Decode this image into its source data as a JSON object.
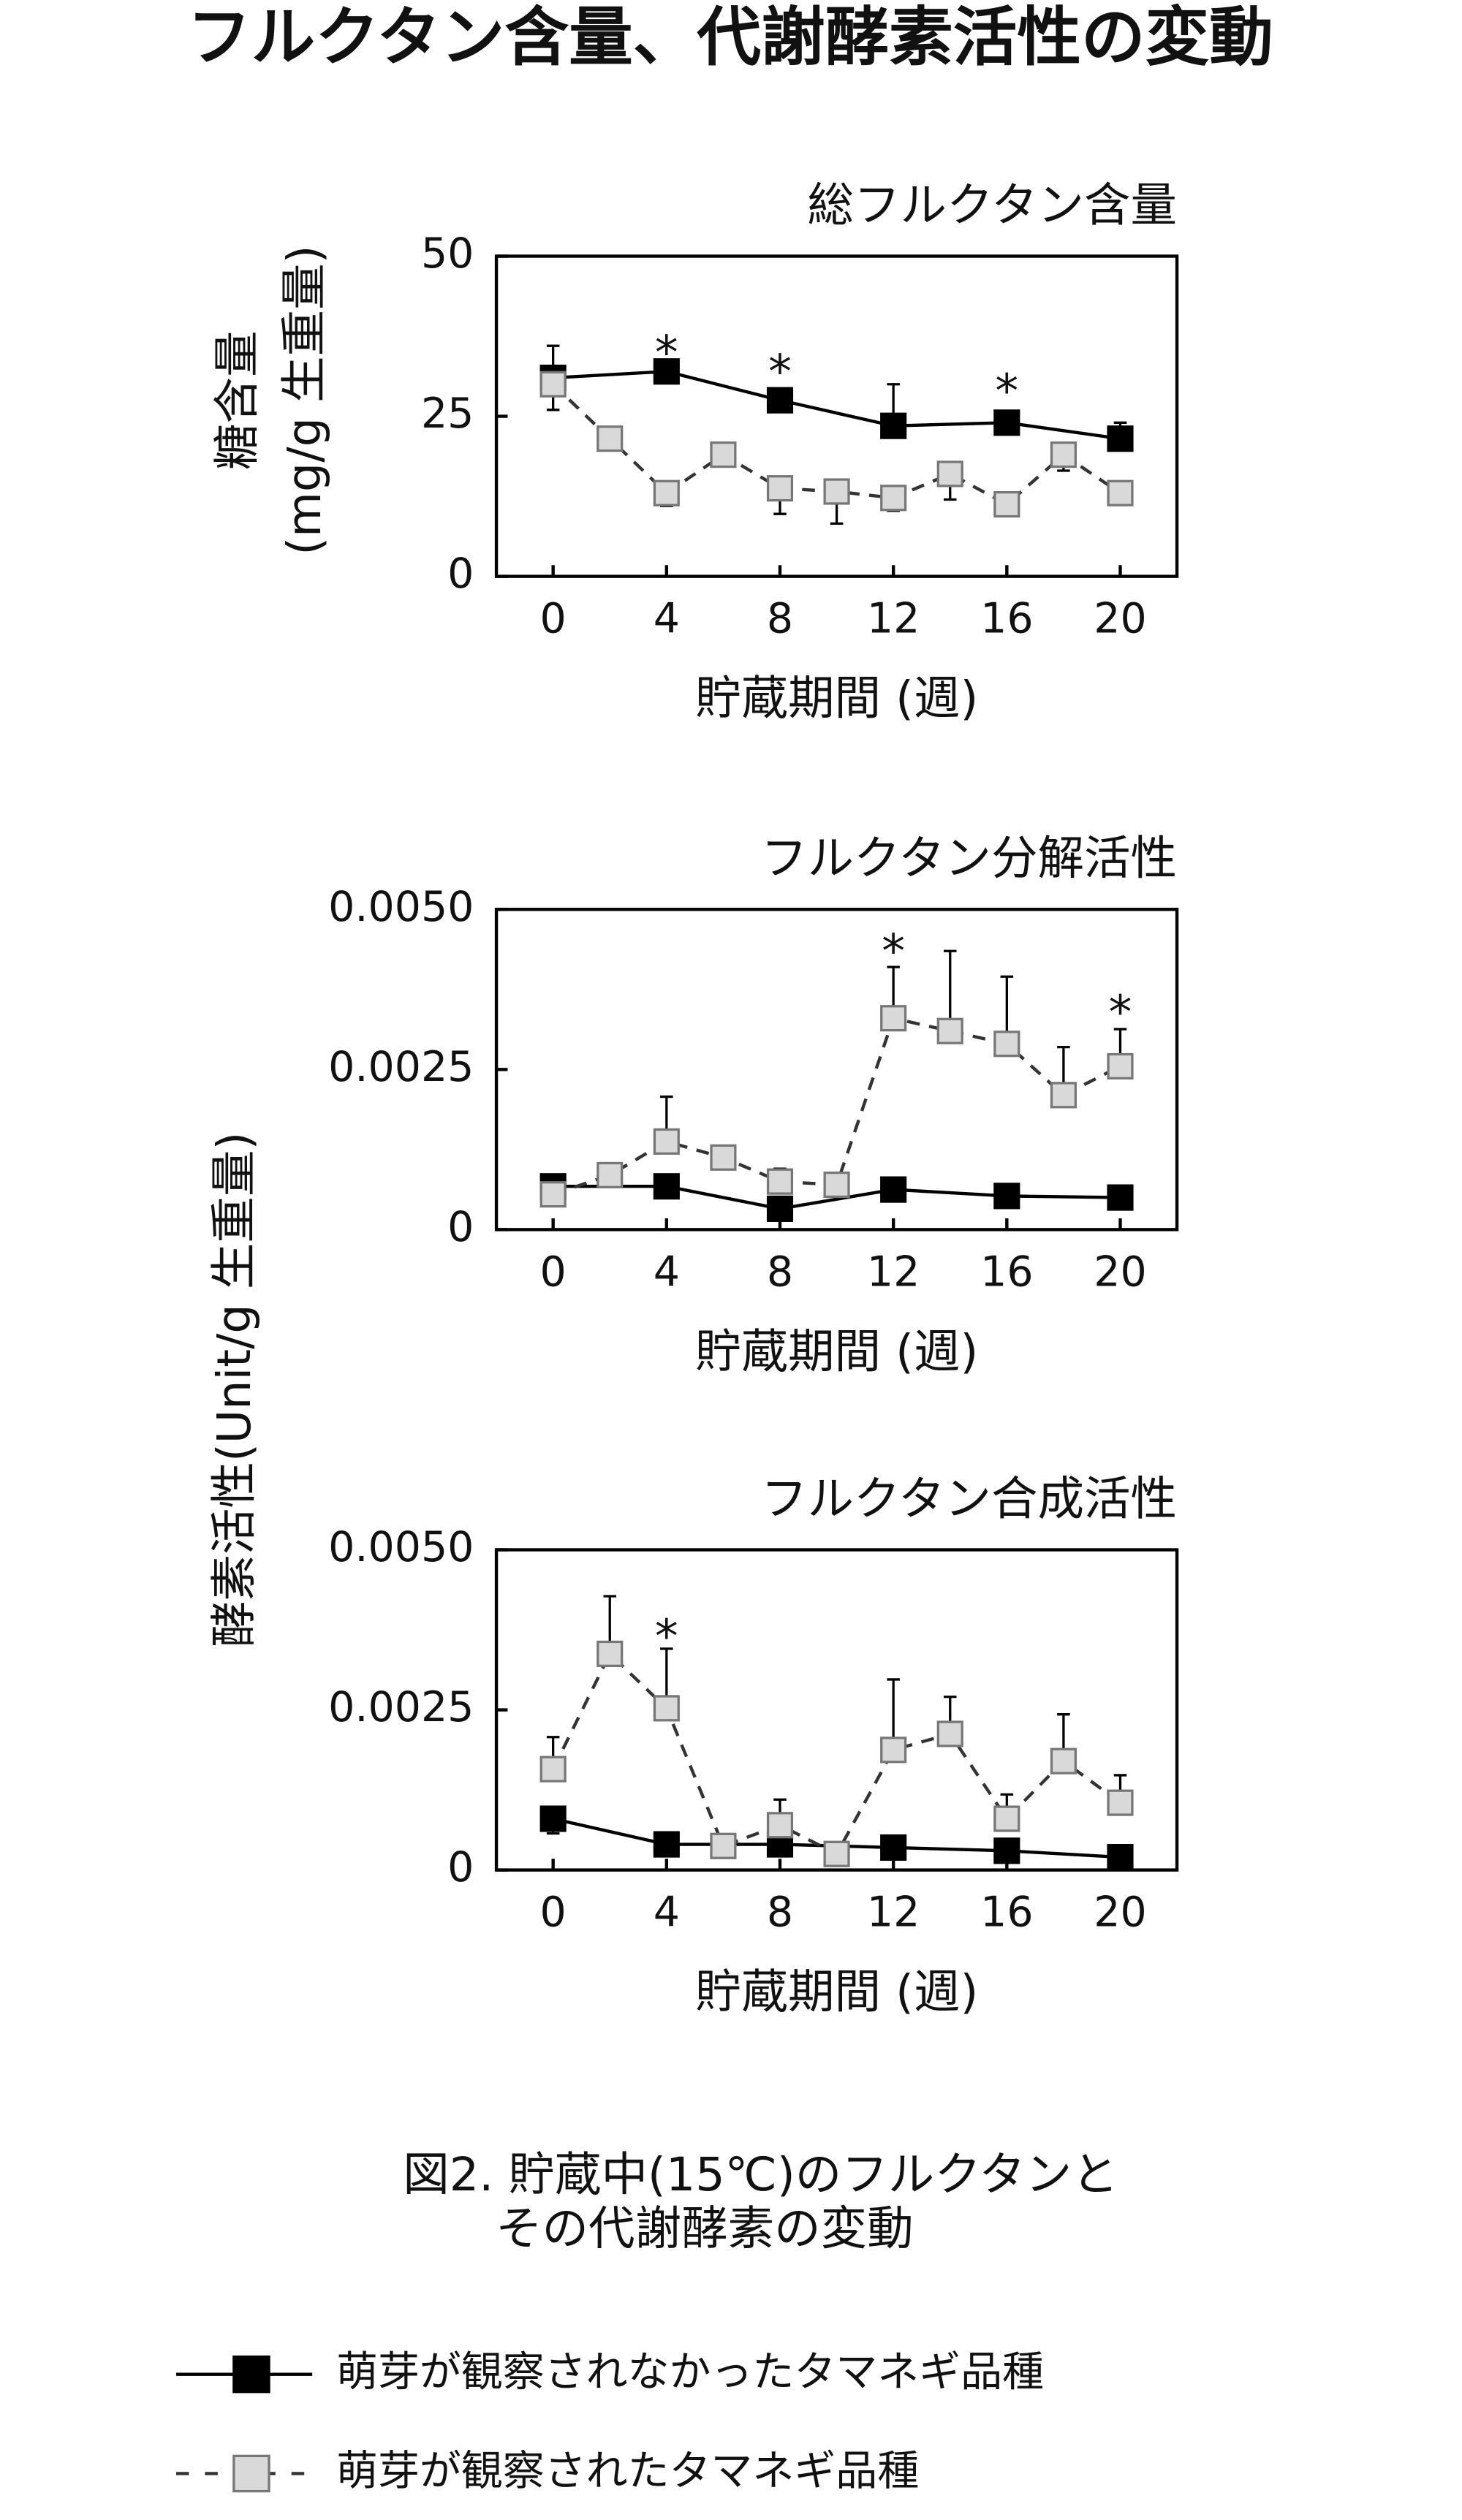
{
  "header": {
    "title": "フルクタン含量、代謝酵素活性の変動"
  },
  "caption": [
    "図2. 貯蔵中(15℃)のフルクタンと",
    "その代謝酵素の変動"
  ],
  "chart_data": [
    {
      "type": "line",
      "title": "総フルクタン含量",
      "ylabel": [
        "糖含量",
        "(mg/g 生重量)"
      ],
      "xlabel": "貯蔵期間 (週)",
      "xlim": [
        -2,
        22
      ],
      "xticks": [
        0,
        4,
        8,
        12,
        16,
        20
      ],
      "ylim": [
        0,
        50
      ],
      "yticks": [
        0,
        25,
        50
      ],
      "series": [
        {
          "name": "萌芽が観察されなかったタマネギ品種",
          "color": "#000000",
          "marker_fill": "#000000",
          "dashed": false,
          "error_side": "up",
          "x": [
            0,
            4,
            8,
            12,
            16,
            20
          ],
          "values": [
            31,
            32,
            27.5,
            23.5,
            24,
            21.5
          ],
          "errors": [
            5,
            1,
            1.5,
            6.5,
            1.5,
            2.5
          ]
        },
        {
          "name": "萌芽が観察されたタマネギ品種",
          "color": "#333333",
          "marker_fill": "#d9d9d9",
          "dashed": true,
          "error_side": "down",
          "x": [
            0,
            2,
            4,
            6,
            8,
            10,
            12,
            14,
            16,
            18,
            20
          ],
          "values": [
            30,
            21.5,
            13,
            19,
            13.75,
            13.25,
            12.25,
            16,
            11.25,
            19,
            13
          ],
          "errors": [
            4,
            0,
            2,
            0,
            4,
            5,
            2,
            4,
            0,
            2.5,
            1.5
          ]
        }
      ],
      "annotations": [
        {
          "x": 4,
          "y": 36,
          "text": "*"
        },
        {
          "x": 8,
          "y": 33,
          "text": "*"
        },
        {
          "x": 16,
          "y": 30,
          "text": "*"
        }
      ]
    },
    {
      "type": "line",
      "title": "フルクタン分解活性",
      "ylabel": "酵素活性(Unit/g 生重量)",
      "xlabel": "貯蔵期間 (週)",
      "xlim": [
        -2,
        22
      ],
      "xticks": [
        0,
        4,
        8,
        12,
        16,
        20
      ],
      "ylim": [
        0,
        0.005
      ],
      "yticks": [
        0,
        0.0025,
        {
          "value": 0.005,
          "label": "0.0050"
        }
      ],
      "series": [
        {
          "color": "#000000",
          "marker_fill": "#000000",
          "dashed": false,
          "error_side": "up",
          "x": [
            0,
            4,
            8,
            12,
            16,
            20
          ],
          "values": [
            0.000675,
            0.000675,
            0.000325,
            0.000625,
            0.000525,
            0.0005
          ],
          "errors": [
            0,
            0,
            0,
            0,
            0,
            0
          ]
        },
        {
          "color": "#333333",
          "marker_fill": "#d9d9d9",
          "dashed": true,
          "error_side": "up",
          "x": [
            0,
            2,
            4,
            6,
            8,
            10,
            12,
            14,
            16,
            18,
            20
          ],
          "values": [
            0.00055,
            0.00085,
            0.001375,
            0.001125,
            0.00075,
            0.0007,
            0.0033,
            0.0031,
            0.0029,
            0.0021,
            0.00255
          ],
          "errors": [
            0,
            0.00015,
            0.0007,
            0,
            0.0002,
            0.0001,
            0.0008,
            0.00125,
            0.00105,
            0.00075,
            0.00058
          ]
        }
      ],
      "annotations": [
        {
          "x": 12,
          "y": 0.00445,
          "text": "*"
        },
        {
          "x": 20,
          "y": 0.0035,
          "text": "*"
        }
      ]
    },
    {
      "type": "line",
      "title": "フルクタン合成活性",
      "xlabel": "貯蔵期間 (週)",
      "xlim": [
        -2,
        22
      ],
      "xticks": [
        0,
        4,
        8,
        12,
        16,
        20
      ],
      "ylim": [
        0,
        0.005
      ],
      "yticks": [
        0,
        0.0025,
        {
          "value": 0.005,
          "label": "0.0050"
        }
      ],
      "series": [
        {
          "color": "#000000",
          "marker_fill": "#000000",
          "dashed": false,
          "error_side": "down",
          "x": [
            0,
            4,
            8,
            12,
            16,
            20
          ],
          "values": [
            0.0008,
            0.0004,
            0.0004,
            0.00035,
            0.0003,
            0.0002
          ],
          "errors": [
            0.00023,
            0,
            0,
            0,
            0,
            0
          ]
        },
        {
          "color": "#333333",
          "marker_fill": "#d9d9d9",
          "dashed": true,
          "error_side": "up",
          "x": [
            0,
            2,
            4,
            6,
            8,
            10,
            12,
            14,
            16,
            18,
            20
          ],
          "values": [
            0.001575,
            0.003375,
            0.002525,
            0.000375,
            0.0007,
            0.00025,
            0.001875,
            0.002125,
            0.0008,
            0.0017,
            0.00105
          ],
          "errors": [
            0.0005,
            0.0009,
            0.00093,
            0,
            0.0004,
            0,
            0.0011,
            0.00058,
            0.00038,
            0.00073,
            0.00043
          ]
        }
      ],
      "annotations": [
        {
          "x": 4,
          "y": 0.00375,
          "text": "*"
        }
      ]
    }
  ]
}
